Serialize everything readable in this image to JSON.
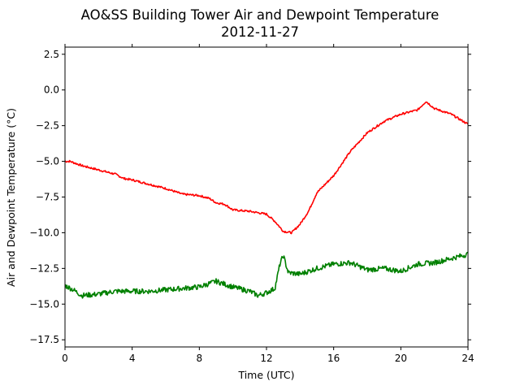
{
  "chart_data": {
    "type": "line",
    "title": "AO&SS Building Tower Air and Dewpoint Temperature",
    "subtitle": "2012-11-27",
    "xlabel": "Time (UTC)",
    "ylabel": "Air and Dewpoint Temperature (°C)",
    "xlim": [
      0,
      24
    ],
    "ylim": [
      -18,
      3
    ],
    "xticks": [
      0,
      4,
      8,
      12,
      16,
      20,
      24
    ],
    "yticks": [
      2.5,
      0.0,
      -2.5,
      -5.0,
      -7.5,
      -10.0,
      -12.5,
      -15.0,
      -17.5
    ],
    "grid": false,
    "series": [
      {
        "color": "#ff0000",
        "x": [
          0,
          0.3,
          1,
          2,
          3,
          3.5,
          4,
          5,
          6,
          7,
          8,
          8.6,
          9,
          9.5,
          10,
          11,
          12,
          12.5,
          13,
          13.5,
          14,
          14.5,
          15,
          16,
          17,
          18,
          19,
          20,
          21,
          21.5,
          22,
          23,
          24
        ],
        "values": [
          -5.0,
          -5.0,
          -5.3,
          -5.6,
          -5.9,
          -6.2,
          -6.3,
          -6.6,
          -6.9,
          -7.3,
          -7.4,
          -7.6,
          -7.9,
          -8.0,
          -8.4,
          -8.5,
          -8.7,
          -9.2,
          -9.9,
          -10.0,
          -9.4,
          -8.5,
          -7.2,
          -6.0,
          -4.3,
          -3.0,
          -2.2,
          -1.7,
          -1.4,
          -0.8,
          -1.3,
          -1.7,
          -2.4
        ]
      },
      {
        "color": "#008000",
        "x": [
          0,
          0.5,
          1,
          2,
          3,
          4,
          5,
          6,
          7,
          8,
          9,
          10,
          11,
          11.5,
          12,
          12.5,
          12.8,
          13,
          13.3,
          14,
          15,
          16,
          17,
          18,
          19,
          20,
          21,
          22,
          23,
          24
        ],
        "values": [
          -13.7,
          -14.0,
          -14.4,
          -14.3,
          -14.1,
          -14.1,
          -14.1,
          -14.0,
          -13.9,
          -13.8,
          -13.4,
          -13.8,
          -14.1,
          -14.4,
          -14.2,
          -13.9,
          -12.2,
          -11.6,
          -12.8,
          -12.9,
          -12.5,
          -12.2,
          -12.1,
          -12.6,
          -12.5,
          -12.7,
          -12.2,
          -12.1,
          -11.8,
          -11.5
        ]
      }
    ]
  }
}
